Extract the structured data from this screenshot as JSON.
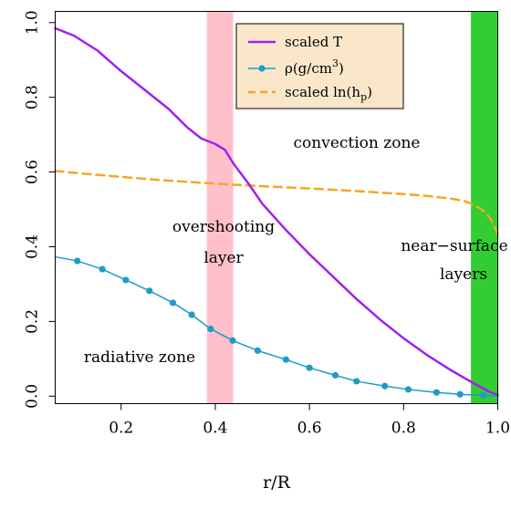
{
  "chart_data": {
    "type": "line",
    "xlabel": "r/R",
    "ylabel": "",
    "xlim": [
      0.06,
      1.0
    ],
    "ylim": [
      -0.02,
      1.03
    ],
    "xticks": [
      "0.2",
      "0.4",
      "0.6",
      "0.8",
      "1.0"
    ],
    "xtick_values": [
      0.2,
      0.4,
      0.6,
      0.8,
      1.0
    ],
    "yticks": [
      "0.0",
      "0.2",
      "0.4",
      "0.6",
      "0.8",
      "1.0"
    ],
    "ytick_values": [
      0.0,
      0.2,
      0.4,
      0.6,
      0.8,
      1.0
    ],
    "bands": [
      {
        "name": "overshooting-band",
        "x0": 0.382,
        "x1": 0.438,
        "color": "#ffc0cb"
      },
      {
        "name": "near-surface-band",
        "x0": 0.943,
        "x1": 1.0,
        "color": "#32cd32"
      }
    ],
    "series": [
      {
        "name": "scaled T",
        "color": "#a020f0",
        "style": "solid",
        "x": [
          0.06,
          0.1,
          0.15,
          0.2,
          0.25,
          0.3,
          0.34,
          0.37,
          0.4,
          0.42,
          0.44,
          0.47,
          0.5,
          0.55,
          0.6,
          0.65,
          0.7,
          0.75,
          0.8,
          0.85,
          0.9,
          0.93,
          0.96,
          0.98,
          1.0
        ],
        "y": [
          0.985,
          0.965,
          0.925,
          0.87,
          0.82,
          0.77,
          0.72,
          0.69,
          0.675,
          0.66,
          0.62,
          0.57,
          0.515,
          0.445,
          0.38,
          0.32,
          0.26,
          0.205,
          0.155,
          0.11,
          0.07,
          0.048,
          0.027,
          0.013,
          0.003
        ]
      },
      {
        "name": "ρ(g/cm3)",
        "legend_main": "ρ(g/cm",
        "legend_sup": "3",
        "legend_tail": ")",
        "color": "#1f9bc8",
        "style": "solid-points",
        "x": [
          0.06,
          0.107,
          0.16,
          0.21,
          0.26,
          0.31,
          0.35,
          0.39,
          0.437,
          0.49,
          0.55,
          0.6,
          0.655,
          0.7,
          0.76,
          0.81,
          0.87,
          0.92,
          0.97,
          1.0
        ],
        "y": [
          0.373,
          0.362,
          0.34,
          0.311,
          0.282,
          0.25,
          0.218,
          0.18,
          0.149,
          0.122,
          0.098,
          0.076,
          0.056,
          0.04,
          0.027,
          0.018,
          0.01,
          0.005,
          0.002,
          0.0
        ],
        "points_x": [
          0.107,
          0.16,
          0.21,
          0.26,
          0.31,
          0.35,
          0.39,
          0.437,
          0.49,
          0.55,
          0.6,
          0.655,
          0.7,
          0.76,
          0.81,
          0.87,
          0.92,
          0.97
        ],
        "points_y": [
          0.362,
          0.34,
          0.311,
          0.282,
          0.25,
          0.218,
          0.18,
          0.149,
          0.122,
          0.098,
          0.076,
          0.056,
          0.04,
          0.027,
          0.018,
          0.01,
          0.005,
          0.002
        ]
      },
      {
        "name": "scaled ln(hp)",
        "legend_main": "scaled ln(h",
        "legend_sub": "p",
        "legend_tail": ")",
        "color": "#f5a623",
        "style": "dashed",
        "x": [
          0.06,
          0.1,
          0.2,
          0.3,
          0.4,
          0.5,
          0.6,
          0.7,
          0.8,
          0.85,
          0.9,
          0.93,
          0.95,
          0.97,
          0.985,
          1.0
        ],
        "y": [
          0.603,
          0.598,
          0.587,
          0.577,
          0.569,
          0.562,
          0.556,
          0.549,
          0.541,
          0.536,
          0.529,
          0.522,
          0.512,
          0.496,
          0.475,
          0.435
        ]
      }
    ],
    "annotations": {
      "convection": "convection zone",
      "overshooting_1": "overshooting",
      "overshooting_2": "layer",
      "near_surface_1": "near−surface",
      "near_surface_2": "layers",
      "radiative": "radiative zone"
    },
    "legend": {
      "placement": "top",
      "background": "#fae7c9"
    }
  }
}
